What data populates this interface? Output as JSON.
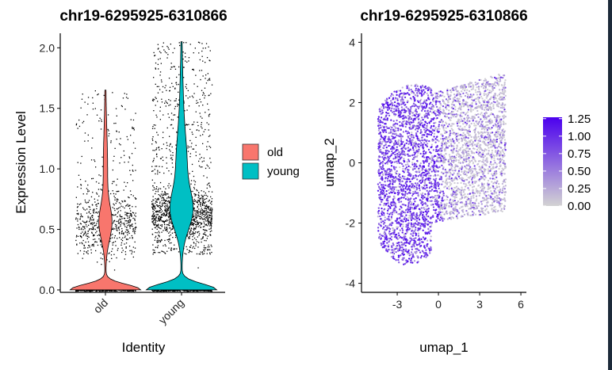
{
  "chart_data": [
    {
      "type": "violin",
      "title": "chr19-6295925-6310866",
      "xlabel": "Identity",
      "ylabel": "Expression Level",
      "categories": [
        "old",
        "young"
      ],
      "ylim": [
        -0.02,
        2.12
      ],
      "yticks": [
        0.0,
        0.5,
        1.0,
        1.5,
        2.0
      ],
      "ytick_labels": [
        "0.0",
        "0.5",
        "1.0",
        "1.5",
        "2.0"
      ],
      "colors": {
        "old": "#F8766D",
        "young": "#00BFC4"
      },
      "legend": {
        "placement": "right",
        "entries": [
          "old",
          "young"
        ]
      },
      "grid": false,
      "series": [
        {
          "name": "old",
          "max": 1.65,
          "nonzero_range": [
            0.2,
            1.65
          ],
          "mode_nonzero": 0.55
        },
        {
          "name": "young",
          "max": 2.05,
          "nonzero_range": [
            0.2,
            2.05
          ],
          "mode_nonzero": 0.65
        }
      ]
    },
    {
      "type": "scatter",
      "title": "chr19-6295925-6310866",
      "xlabel": "umap_1",
      "ylabel": "umap_2",
      "xlim": [
        -5.6,
        6.4
      ],
      "ylim": [
        -4.3,
        4.3
      ],
      "xticks": [
        -3,
        0,
        3,
        6
      ],
      "xtick_labels": [
        "-3",
        "0",
        "3",
        "6"
      ],
      "yticks": [
        -4,
        -2,
        0,
        2,
        4
      ],
      "ytick_labels": [
        "-4",
        "-2",
        "0",
        "2",
        "4"
      ],
      "colorbar": {
        "min": 0.0,
        "max": 1.27,
        "ticks": [
          1.25,
          1.0,
          0.75,
          0.5,
          0.25,
          0.0
        ],
        "tick_labels": [
          "1.25",
          "1.00",
          "0.75",
          "0.50",
          "0.25",
          "0.00"
        ],
        "low_color": "#d3d3d3",
        "high_color": "#4b00ee"
      },
      "grid": false
    }
  ]
}
